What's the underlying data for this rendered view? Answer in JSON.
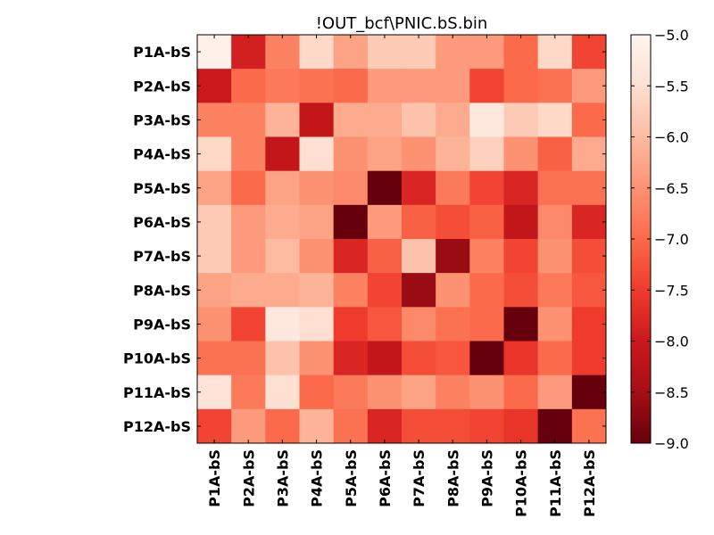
{
  "chart_data": {
    "type": "heatmap",
    "title": "!OUT_bcf\\PNIC.bS.bin",
    "row_labels": [
      "P1A-bS",
      "P2A-bS",
      "P3A-bS",
      "P4A-bS",
      "P5A-bS",
      "P6A-bS",
      "P7A-bS",
      "P8A-bS",
      "P9A-bS",
      "P10A-bS",
      "P11A-bS",
      "P12A-bS"
    ],
    "col_labels": [
      "P1A-bS",
      "P2A-bS",
      "P3A-bS",
      "P4A-bS",
      "P5A-bS",
      "P6A-bS",
      "P7A-bS",
      "P8A-bS",
      "P9A-bS",
      "P10A-bS",
      "P11A-bS",
      "P12A-bS"
    ],
    "values": [
      [
        -5.1,
        -7.9,
        -6.7,
        -5.6,
        -6.3,
        -5.8,
        -5.8,
        -6.4,
        -6.4,
        -7.0,
        -5.6,
        -7.4
      ],
      [
        -8.0,
        -7.0,
        -6.8,
        -6.9,
        -7.0,
        -6.4,
        -6.4,
        -6.4,
        -7.4,
        -7.0,
        -6.9,
        -6.4
      ],
      [
        -6.7,
        -6.7,
        -6.1,
        -8.1,
        -6.2,
        -6.2,
        -5.9,
        -6.2,
        -5.3,
        -5.8,
        -5.6,
        -7.0
      ],
      [
        -5.6,
        -6.7,
        -8.1,
        -5.5,
        -6.5,
        -6.3,
        -6.5,
        -6.1,
        -5.7,
        -6.5,
        -7.1,
        -6.2
      ],
      [
        -6.3,
        -7.0,
        -6.3,
        -6.5,
        -6.6,
        -9.0,
        -7.8,
        -6.8,
        -7.4,
        -7.8,
        -6.9,
        -6.9
      ],
      [
        -5.8,
        -6.4,
        -6.2,
        -6.3,
        -9.0,
        -6.4,
        -7.1,
        -7.3,
        -7.1,
        -8.1,
        -6.6,
        -7.8
      ],
      [
        -5.8,
        -6.4,
        -6.0,
        -6.5,
        -7.8,
        -7.1,
        -5.9,
        -8.6,
        -6.7,
        -7.4,
        -6.5,
        -7.3
      ],
      [
        -6.3,
        -6.2,
        -6.2,
        -6.1,
        -6.7,
        -7.4,
        -8.6,
        -6.5,
        -7.0,
        -7.3,
        -6.8,
        -7.2
      ],
      [
        -6.5,
        -7.4,
        -5.3,
        -5.5,
        -7.5,
        -7.2,
        -6.6,
        -6.9,
        -7.0,
        -9.0,
        -6.5,
        -7.5
      ],
      [
        -6.9,
        -6.9,
        -5.9,
        -6.5,
        -7.8,
        -8.1,
        -7.3,
        -7.2,
        -9.0,
        -7.6,
        -7.0,
        -7.5
      ],
      [
        -5.4,
        -6.8,
        -5.5,
        -7.0,
        -6.8,
        -6.5,
        -6.3,
        -6.7,
        -6.5,
        -7.0,
        -6.4,
        -9.0
      ],
      [
        -7.4,
        -6.4,
        -7.0,
        -6.1,
        -6.9,
        -7.8,
        -7.3,
        -7.3,
        -7.4,
        -7.6,
        -9.0,
        -6.9
      ]
    ],
    "vmin": -9.0,
    "vmax": -5.0,
    "colormap": "Reds_r",
    "colorbar_ticks": [
      -5.0,
      -5.5,
      -6.0,
      -6.5,
      -7.0,
      -7.5,
      -8.0,
      -8.5,
      -9.0
    ],
    "colorbar_tick_labels": [
      "−5.0",
      "−5.5",
      "−6.0",
      "−6.5",
      "−7.0",
      "−7.5",
      "−8.0",
      "−8.5",
      "−9.0"
    ],
    "grid": false
  }
}
